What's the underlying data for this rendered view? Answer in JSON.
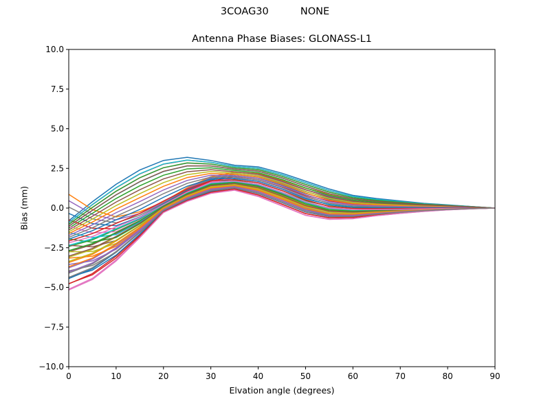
{
  "figure": {
    "suptitle": "3COAG30          NONE",
    "title": "Antenna Phase Biases: GLONASS-L1",
    "xlabel": "Elvation angle (degrees)",
    "ylabel": "Bias (mm)"
  },
  "chart_data": {
    "type": "line",
    "title": "Antenna Phase Biases: GLONASS-L1",
    "suptitle": "3COAG30          NONE",
    "xlabel": "Elvation angle (degrees)",
    "ylabel": "Bias (mm)",
    "xlim": [
      0,
      90
    ],
    "ylim": [
      -10.0,
      10.0
    ],
    "xticks": [
      0,
      10,
      20,
      30,
      40,
      50,
      60,
      70,
      80,
      90
    ],
    "yticks": [
      -10.0,
      -7.5,
      -5.0,
      -2.5,
      0.0,
      2.5,
      5.0,
      7.5,
      10.0
    ],
    "ytick_labels": [
      "−10.0",
      "−7.5",
      "−5.0",
      "−2.5",
      "0.0",
      "2.5",
      "5.0",
      "7.5",
      "10.0"
    ],
    "grid": false,
    "legend": false,
    "x": [
      0,
      5,
      10,
      15,
      20,
      25,
      30,
      35,
      40,
      45,
      50,
      55,
      60,
      65,
      70,
      75,
      80,
      85,
      90
    ],
    "profiles": {
      "upper_early_peak": [
        -0.8,
        0.4,
        1.5,
        2.4,
        3.0,
        3.2,
        3.0,
        2.7,
        2.6,
        2.2,
        1.7,
        1.2,
        0.8,
        0.6,
        0.45,
        0.3,
        0.2,
        0.1,
        0.0
      ],
      "upper_start_high": [
        1.0,
        0.0,
        -0.5,
        -0.2,
        0.4,
        1.3,
        2.0,
        2.3,
        2.2,
        1.8,
        1.3,
        0.9,
        0.6,
        0.45,
        0.35,
        0.25,
        0.15,
        0.08,
        0.0
      ],
      "lower_late_peak": [
        -5.3,
        -4.6,
        -3.4,
        -1.9,
        -0.3,
        0.4,
        0.9,
        1.1,
        0.7,
        0.1,
        -0.5,
        -0.75,
        -0.7,
        -0.5,
        -0.35,
        -0.22,
        -0.12,
        -0.05,
        0.0
      ],
      "mid_late_peak": [
        -2.2,
        -1.8,
        -1.2,
        -0.6,
        0.2,
        1.0,
        1.6,
        1.7,
        1.5,
        1.0,
        0.4,
        0.0,
        -0.1,
        -0.1,
        -0.08,
        -0.05,
        -0.03,
        -0.01,
        0.0
      ]
    },
    "series_count": 48,
    "series_colors": [
      "#1f77b4",
      "#ff7f0e",
      "#2ca02c",
      "#d62728",
      "#9467bd",
      "#8c564b",
      "#e377c2",
      "#7f7f7f",
      "#bcbd22",
      "#17becf"
    ]
  }
}
